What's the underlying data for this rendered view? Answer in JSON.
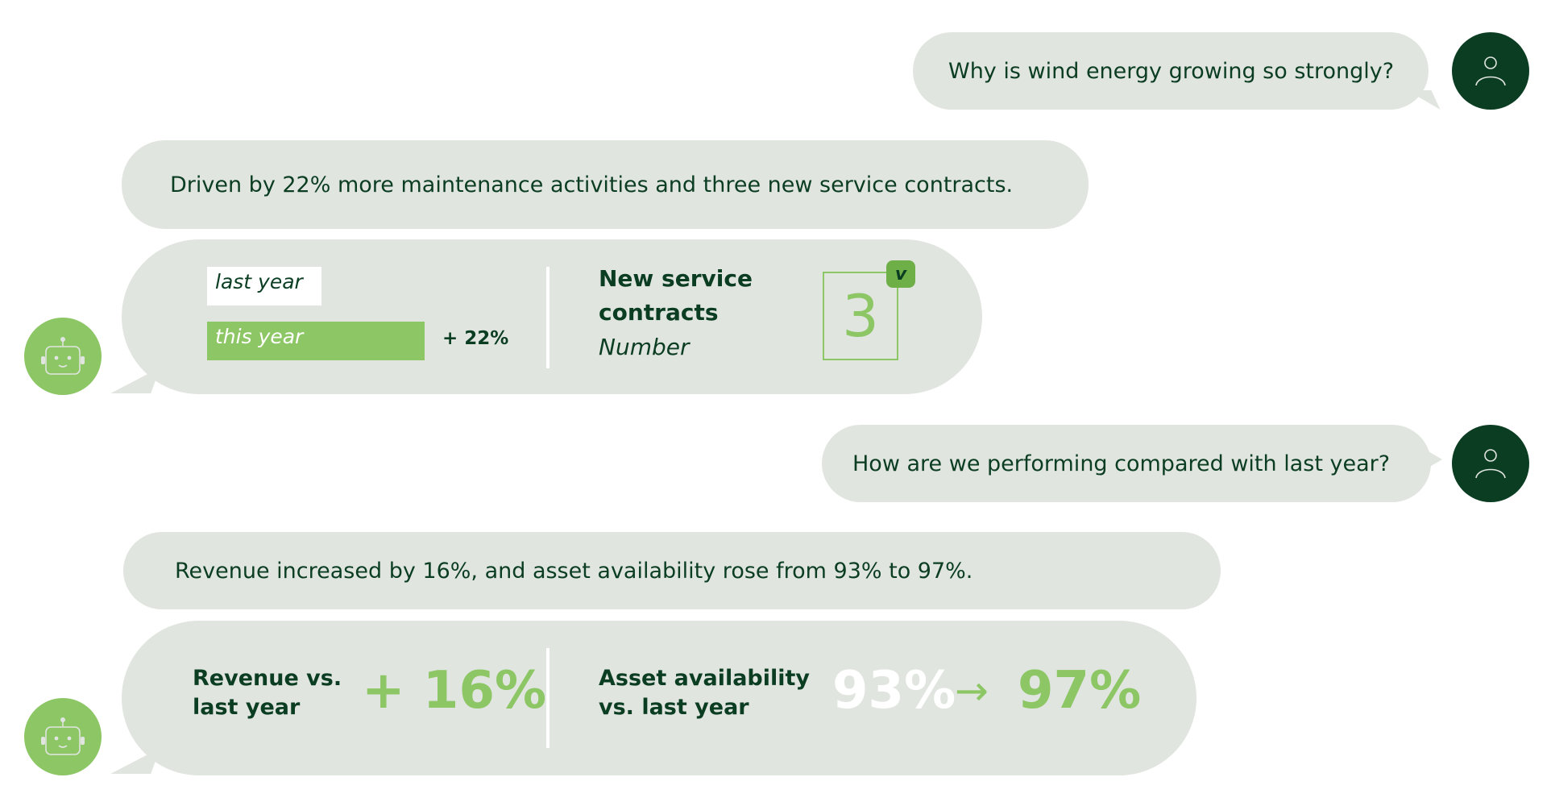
{
  "messages": {
    "q1": {
      "text": "Why is wind energy growing so strongly?"
    },
    "a1": {
      "text": "Driven by 22% more maintenance activities and three new service contracts."
    },
    "card1": {
      "last_year_label": "last year",
      "this_year_label": "this year",
      "this_year_progress": 1.0,
      "last_year_progress": 0.52,
      "growth": "+ 22%",
      "contracts_title_line1": "New service",
      "contracts_title_line2": "contracts",
      "contracts_subtitle": "Number",
      "contracts_value": "3",
      "check_mark": "v"
    },
    "q2": {
      "text": "How are we performing compared with last year?"
    },
    "a2": {
      "text": "Revenue increased by 16%, and asset availability rose from 93% to 97%."
    },
    "card2": {
      "revenue_label_line1": "Revenue vs.",
      "revenue_label_line2": "last year",
      "revenue_value": "+ 16%",
      "availability_label_line1": "Asset availability",
      "availability_label_line2": "vs. last year",
      "availability_from": "93%",
      "arrow": "→",
      "availability_to": "97%"
    }
  },
  "icons": {
    "user": "user-icon",
    "bot": "robot-icon"
  },
  "colors": {
    "dark_green": "#0b3d22",
    "light_green": "#8cc665",
    "bubble": "#e1e5df",
    "white": "#ffffff"
  }
}
